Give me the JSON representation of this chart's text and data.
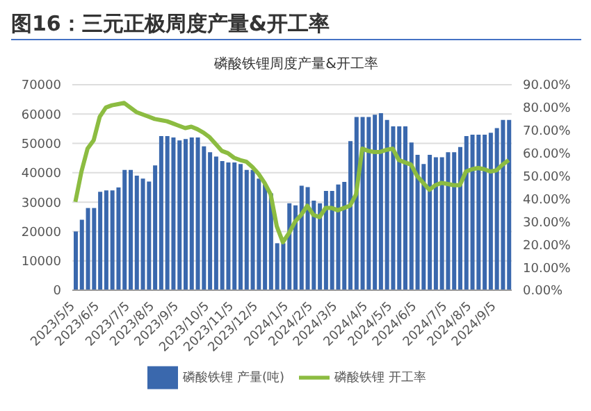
{
  "chart_data": {
    "type": "bar",
    "title": "图16：三元正极周度产量&开工率",
    "subtitle": "磷酸铁锂周度产量&开工率",
    "categories": [
      "2023/5/5",
      null,
      null,
      null,
      "2023/6/5",
      null,
      null,
      null,
      null,
      "2023/7/5",
      null,
      null,
      null,
      "2023/8/5",
      null,
      null,
      null,
      "2023/9/5",
      null,
      null,
      null,
      null,
      "2023/10/5",
      null,
      null,
      null,
      "2023/11/5",
      null,
      null,
      null,
      "2023/12/5",
      null,
      null,
      null,
      null,
      "2024/1/5",
      null,
      null,
      null,
      "2024/2/5",
      null,
      null,
      null,
      "2024/3/5",
      null,
      null,
      null,
      null,
      "2024/4/5",
      null,
      null,
      null,
      "2024/5/5",
      null,
      null,
      null,
      "2024/6/5",
      null,
      null,
      null,
      null,
      "2024/7/5",
      null,
      null,
      null,
      "2024/8/5",
      null,
      null,
      null,
      "2024/9/5",
      null,
      null
    ],
    "series": [
      {
        "name": "磷酸铁锂 产量(吨)",
        "color": "#3a68ad",
        "values": [
          20000,
          24000,
          28000,
          28000,
          33500,
          34000,
          34000,
          35000,
          41000,
          41000,
          39000,
          38000,
          37000,
          42500,
          52500,
          52500,
          52000,
          51000,
          51500,
          52000,
          52000,
          49000,
          47000,
          45500,
          44000,
          43500,
          43500,
          43000,
          41000,
          41000,
          38000,
          36000,
          33000,
          16000,
          16000,
          29600,
          28900,
          35600,
          35100,
          30500,
          29600,
          33800,
          33800,
          36000,
          36900,
          50800,
          59000,
          59000,
          59000,
          59800,
          60300,
          58000,
          55800,
          55800,
          55800,
          50300,
          46100,
          43000,
          46100,
          45300,
          45300,
          47000,
          47000,
          48800,
          52500,
          53000,
          53000,
          53000,
          53600,
          55200,
          58000,
          58000
        ]
      },
      {
        "name": "磷酸铁锂 开工率",
        "type": "line",
        "axis": "y2",
        "color": "#8cbc41",
        "values": [
          38.7,
          52,
          62,
          65.7,
          76,
          80,
          81,
          81.5,
          82,
          80,
          78,
          77,
          76,
          75,
          74.5,
          74,
          73,
          72,
          71,
          71.6,
          70.5,
          69,
          67,
          64,
          61,
          60,
          58,
          57,
          56.3,
          54,
          51,
          47,
          42,
          28,
          21,
          25,
          30,
          33,
          37,
          33,
          32,
          36,
          36,
          35,
          36,
          37,
          42,
          62,
          61,
          60.5,
          60.6,
          61.5,
          62,
          57,
          56,
          55,
          50,
          47,
          44,
          46,
          47,
          46.5,
          46,
          46,
          52,
          53,
          53.5,
          53,
          52,
          52.5,
          55,
          57
        ]
      }
    ],
    "ylim": [
      0,
      70000
    ],
    "yticks": [
      0,
      10000,
      20000,
      30000,
      40000,
      50000,
      60000,
      70000
    ],
    "y2lim": [
      0,
      90
    ],
    "y2ticks": [
      {
        "value": 0,
        "label": "0.00%"
      },
      {
        "value": 10,
        "label": "10.00%"
      },
      {
        "value": 20,
        "label": "20.00%"
      },
      {
        "value": 30,
        "label": "30.00%"
      },
      {
        "value": 40,
        "label": "40.00%"
      },
      {
        "value": 50,
        "label": "50.00%"
      },
      {
        "value": 60,
        "label": "60.00%"
      },
      {
        "value": 70,
        "label": "70.00%"
      },
      {
        "value": 80,
        "label": "80.00%"
      },
      {
        "value": 90,
        "label": "90.00%"
      }
    ],
    "grid": "y",
    "legend": "bottom",
    "marker": "none"
  }
}
